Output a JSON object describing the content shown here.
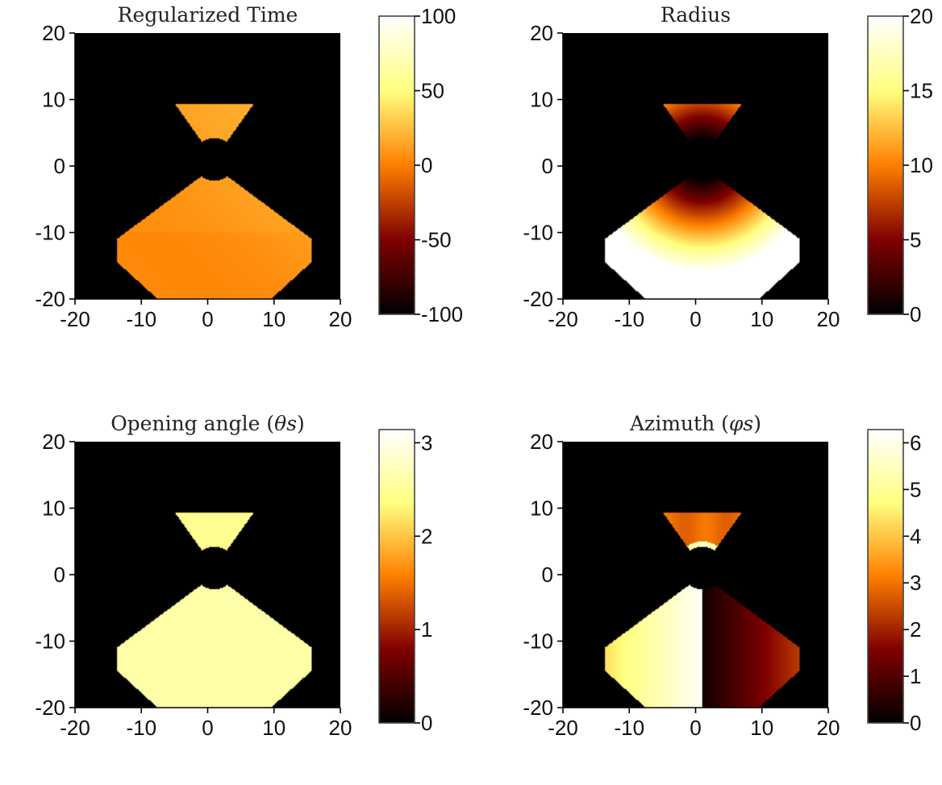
{
  "colors": {
    "background": "#000000",
    "axes": "#000000",
    "colormap": "afmhot"
  },
  "chart_data": [
    {
      "type": "heatmap",
      "title": "Regularized Time",
      "title_math": "",
      "xlabel": "",
      "ylabel": "",
      "xlim": [
        -20,
        20
      ],
      "ylim": [
        -20,
        20
      ],
      "xticks": [
        "-20",
        "-10",
        "0",
        "10",
        "20"
      ],
      "yticks": [
        "-20",
        "-10",
        "0",
        "10",
        "20"
      ],
      "colorbar": {
        "range": [
          -100,
          100
        ],
        "ticks": [
          "-100",
          "-50",
          "0",
          "50",
          "100"
        ],
        "tick_values": [
          -100,
          -50,
          0,
          50,
          100
        ]
      },
      "field": "time",
      "grid": false
    },
    {
      "type": "heatmap",
      "title": "Radius",
      "title_math": "",
      "xlabel": "",
      "ylabel": "",
      "xlim": [
        -20,
        20
      ],
      "ylim": [
        -20,
        20
      ],
      "xticks": [
        "-20",
        "-10",
        "0",
        "10",
        "20"
      ],
      "yticks": [
        "-20",
        "-10",
        "0",
        "10",
        "20"
      ],
      "colorbar": {
        "range": [
          0,
          20
        ],
        "ticks": [
          "0",
          "5",
          "10",
          "15",
          "20"
        ],
        "tick_values": [
          0,
          5,
          10,
          15,
          20
        ]
      },
      "field": "radius",
      "grid": false
    },
    {
      "type": "heatmap",
      "title": "Opening angle (",
      "title_math": "θs",
      "xlabel": "",
      "ylabel": "",
      "xlim": [
        -20,
        20
      ],
      "ylim": [
        -20,
        20
      ],
      "xticks": [
        "-20",
        "-10",
        "0",
        "10",
        "20"
      ],
      "yticks": [
        "-20",
        "-10",
        "0",
        "10",
        "20"
      ],
      "colorbar": {
        "range": [
          0,
          3.1416
        ],
        "ticks": [
          "0",
          "1",
          "2",
          "3"
        ],
        "tick_values": [
          0,
          1,
          2,
          3
        ]
      },
      "field": "theta",
      "grid": false
    },
    {
      "type": "heatmap",
      "title": "Azimuth (",
      "title_math": "φs",
      "xlabel": "",
      "ylabel": "",
      "xlim": [
        -20,
        20
      ],
      "ylim": [
        -20,
        20
      ],
      "xticks": [
        "-20",
        "-10",
        "0",
        "10",
        "20"
      ],
      "yticks": [
        "-20",
        "-10",
        "0",
        "10",
        "20"
      ],
      "colorbar": {
        "range": [
          0,
          6.2832
        ],
        "ticks": [
          "0",
          "1",
          "2",
          "3",
          "4",
          "5",
          "6"
        ],
        "tick_values": [
          0,
          1,
          2,
          3,
          4,
          5,
          6
        ]
      },
      "field": "phi",
      "grid": false
    }
  ]
}
